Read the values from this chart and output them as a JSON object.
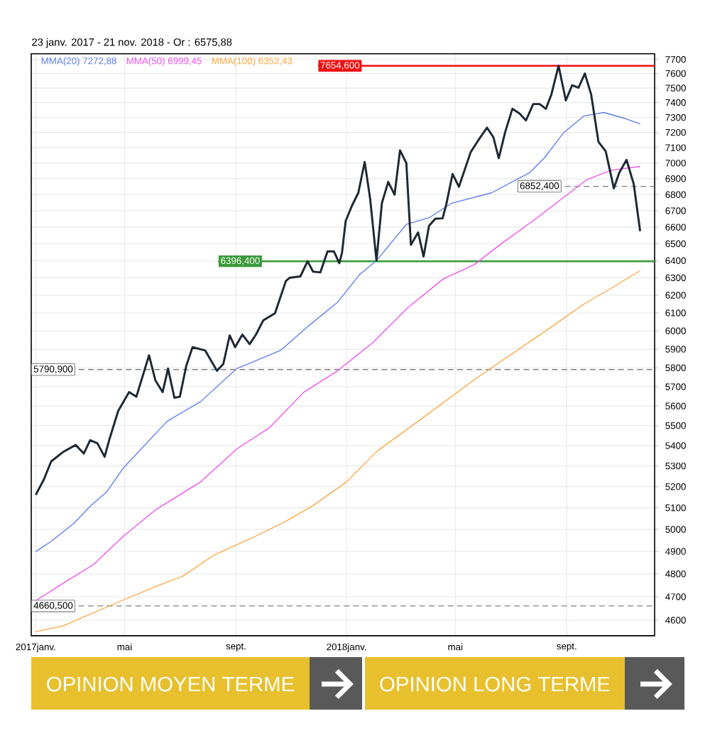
{
  "chart_data": {
    "type": "line",
    "title": "23 janv. 2017 - 21 nov. 2018 - Or : 6575,88",
    "xlim": [
      "2017-01-18",
      "2018-12-07"
    ],
    "xticks": [
      {
        "value": "2017-01-23",
        "label": "2017janv."
      },
      {
        "value": "2017-05-01",
        "label": "mai"
      },
      {
        "value": "2017-09-01",
        "label": "sept."
      },
      {
        "value": "2018-01-01",
        "label": "2018janv."
      },
      {
        "value": "2018-05-01",
        "label": "mai"
      },
      {
        "value": "2018-09-01",
        "label": "sept."
      }
    ],
    "ylim": [
      4535,
      7740
    ],
    "log": true,
    "yticks": [
      4600,
      4700,
      4800,
      4900,
      5000,
      5100,
      5200,
      5300,
      5400,
      5500,
      5600,
      5700,
      5800,
      5900,
      6000,
      6100,
      6200,
      6300,
      6400,
      6500,
      6600,
      6700,
      6800,
      6900,
      7000,
      7100,
      7200,
      7300,
      7400,
      7500,
      7600,
      7700
    ],
    "grid": true,
    "legend": "top left",
    "marker": "none",
    "series": [
      {
        "color": "#1c2833",
        "x": [
          "2017-01-23",
          "2017-02-01",
          "2017-02-09",
          "2017-02-22",
          "2017-03-08",
          "2017-03-17",
          "2017-03-24",
          "2017-04-01",
          "2017-04-09",
          "2017-04-14",
          "2017-04-24",
          "2017-05-06",
          "2017-05-14",
          "2017-05-28",
          "2017-06-04",
          "2017-06-12",
          "2017-06-18",
          "2017-06-25",
          "2017-07-01",
          "2017-07-08",
          "2017-07-15",
          "2017-07-29",
          "2017-08-11",
          "2017-08-18",
          "2017-08-25",
          "2017-08-31",
          "2017-09-08",
          "2017-09-16",
          "2017-09-23",
          "2017-10-01",
          "2017-10-14",
          "2017-10-26",
          "2017-10-30",
          "2017-11-11",
          "2017-11-19",
          "2017-11-25",
          "2017-12-03",
          "2017-12-11",
          "2017-12-18",
          "2017-12-24",
          "2017-12-27",
          "2017-12-31",
          "2018-01-07",
          "2018-01-14",
          "2018-01-21",
          "2018-01-27",
          "2018-02-03",
          "2018-02-09",
          "2018-02-16",
          "2018-02-23",
          "2018-03-01",
          "2018-03-08",
          "2018-03-13",
          "2018-03-21",
          "2018-03-27",
          "2018-04-02",
          "2018-04-09",
          "2018-04-17",
          "2018-04-21",
          "2018-04-28",
          "2018-05-05",
          "2018-05-18",
          "2018-05-26",
          "2018-06-05",
          "2018-06-12",
          "2018-06-18",
          "2018-06-25",
          "2018-07-03",
          "2018-07-11",
          "2018-07-18",
          "2018-07-26",
          "2018-08-02",
          "2018-08-09",
          "2018-08-15",
          "2018-08-23",
          "2018-08-31",
          "2018-09-07",
          "2018-09-14",
          "2018-09-21",
          "2018-09-28",
          "2018-10-06",
          "2018-10-14",
          "2018-10-23",
          "2018-10-29",
          "2018-11-06",
          "2018-11-14",
          "2018-11-21"
        ],
        "values": [
          5161,
          5235,
          5322,
          5368,
          5403,
          5361,
          5427,
          5412,
          5345,
          5427,
          5575,
          5672,
          5648,
          5867,
          5734,
          5672,
          5796,
          5643,
          5648,
          5809,
          5911,
          5893,
          5784,
          5821,
          5975,
          5911,
          5980,
          5928,
          5980,
          6058,
          6098,
          6281,
          6300,
          6308,
          6397,
          6336,
          6331,
          6455,
          6455,
          6385,
          6447,
          6637,
          6732,
          6811,
          7007,
          6776,
          6400,
          6747,
          6880,
          6800,
          7083,
          7000,
          6494,
          6568,
          6424,
          6608,
          6651,
          6654,
          6738,
          6930,
          6849,
          7071,
          7145,
          7232,
          7169,
          7031,
          7201,
          7358,
          7326,
          7279,
          7390,
          7390,
          7358,
          7454,
          7654.6,
          7415,
          7519,
          7503,
          7601,
          7454,
          7138,
          7076,
          6840,
          6939,
          7021,
          6865,
          6575.88
        ]
      },
      {
        "name": "MMA(20) 7272,88",
        "color": "#5b7cf0",
        "x": [
          "2017-01-23",
          "2017-02-10",
          "2017-03-06",
          "2017-03-25",
          "2017-04-11",
          "2017-04-30",
          "2017-06-17",
          "2017-07-24",
          "2017-09-02",
          "2017-10-20",
          "2017-11-20",
          "2017-12-22",
          "2018-01-16",
          "2018-02-03",
          "2018-03-08",
          "2018-04-03",
          "2018-04-27",
          "2018-06-10",
          "2018-07-22",
          "2018-08-07",
          "2018-08-29",
          "2018-09-20",
          "2018-10-12",
          "2018-11-03",
          "2018-11-21"
        ],
        "values": [
          4899,
          4948,
          5028,
          5111,
          5174,
          5292,
          5522,
          5623,
          5796,
          5893,
          6027,
          6160,
          6322,
          6400,
          6617,
          6660,
          6747,
          6811,
          6939,
          7031,
          7201,
          7310,
          7333,
          7295,
          7257
        ]
      },
      {
        "name": "MMA(50) 6999,45",
        "color": "#f050f0",
        "x": [
          "2017-01-23",
          "2017-02-22",
          "2017-03-28",
          "2017-04-30",
          "2017-06-04",
          "2017-07-24",
          "2017-09-02",
          "2017-10-08",
          "2017-11-15",
          "2017-12-22",
          "2018-01-30",
          "2018-03-10",
          "2018-04-18",
          "2018-05-22",
          "2018-06-18",
          "2018-07-31",
          "2018-08-27",
          "2018-09-23",
          "2018-10-20",
          "2018-11-21"
        ],
        "values": [
          4683,
          4758,
          4842,
          4970,
          5090,
          5223,
          5384,
          5490,
          5672,
          5784,
          5936,
          6132,
          6294,
          6377,
          6489,
          6660,
          6776,
          6894,
          6955,
          6979
        ]
      },
      {
        "name": "MMA(100) 6352,43",
        "color": "#ffa640",
        "x": [
          "2017-01-23",
          "2017-02-22",
          "2017-04-30",
          "2017-06-09",
          "2017-07-04",
          "2017-08-08",
          "2017-09-23",
          "2017-10-25",
          "2017-11-25",
          "2018-01-01",
          "2018-02-04",
          "2018-03-24",
          "2018-05-24",
          "2018-08-18",
          "2018-09-19",
          "2018-10-11",
          "2018-11-21"
        ],
        "values": [
          4552,
          4576,
          4687,
          4752,
          4789,
          4884,
          4970,
          5035,
          5111,
          5223,
          5373,
          5532,
          5744,
          6032,
          6147,
          6212,
          6341
        ]
      }
    ],
    "ref_lines": [
      {
        "axis": "y",
        "value": 7654.6,
        "label": "7654,600",
        "color": "#ee1111"
      },
      {
        "axis": "y",
        "value": 6396.4,
        "label": "6396,400",
        "color": "#3a9a3a"
      },
      {
        "axis": "y",
        "value": 6852.4,
        "label": "6852,400",
        "color": "#808080",
        "line_style": "dashed"
      },
      {
        "axis": "y",
        "value": 5790.9,
        "label": "5790,900",
        "color": "#808080",
        "line_style": "dashed"
      },
      {
        "axis": "y",
        "value": 4660.5,
        "label": "4660,500",
        "color": "#808080",
        "line_style": "dashed"
      }
    ],
    "annotations": [
      "OPINION MOYEN TERME",
      "OPINION LONG TERME"
    ]
  }
}
